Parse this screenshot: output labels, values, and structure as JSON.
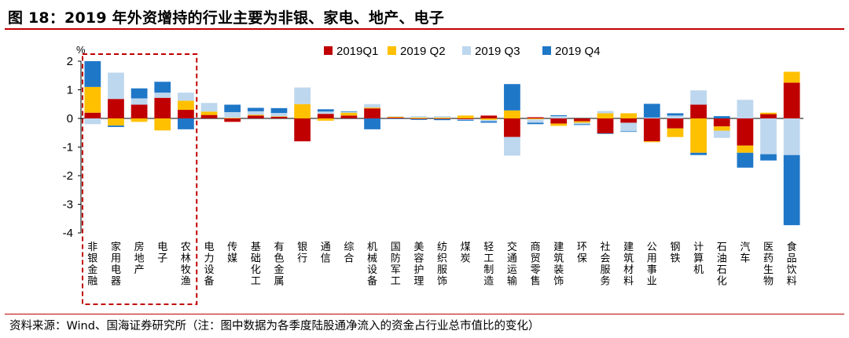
{
  "title": "图 18：2019 年外资增持的行业主要为非银、家电、地产、电子",
  "source": "资料来源：Wind、国海证券研究所（注：图中数据为各季度陆股通净流入的资金占行业总市值比的变化）",
  "colors": {
    "q1": "#c00000",
    "q2": "#ffc000",
    "q3": "#bdd7ee",
    "q4": "#1f77c8",
    "accent": "#c00000",
    "highlight_box": "#c00000"
  },
  "chart_data": {
    "type": "bar",
    "stacked": true,
    "title": "图 18：2019 年外资增持的行业主要为非银、家电、地产、电子",
    "ylabel": "%",
    "xlabel": "",
    "ylim": [
      -4,
      2
    ],
    "yticks": [
      2,
      1,
      0,
      -1,
      -2,
      -3,
      -4
    ],
    "legend_position": "top-center",
    "highlight_box": [
      "非银金融",
      "家用电器",
      "房地产",
      "电子",
      "农林牧渔"
    ],
    "categories": [
      "非银金融",
      "家用电器",
      "房地产",
      "电子",
      "农林牧渔",
      "电力设备",
      "传媒",
      "基础化工",
      "有色金属",
      "银行",
      "通信",
      "综合",
      "机械设备",
      "国防军工",
      "美容护理",
      "纺织服饰",
      "煤炭",
      "轻工制造",
      "交通运输",
      "商贸零售",
      "建筑装饰",
      "环保",
      "社会服务",
      "建筑材料",
      "公用事业",
      "钢铁",
      "计算机",
      "石油石化",
      "汽车",
      "医药生物",
      "食品饮料"
    ],
    "series": [
      {
        "name": "2019Q1",
        "key": "q1",
        "values": [
          0.2,
          0.68,
          0.48,
          0.72,
          0.3,
          0.12,
          -0.12,
          0.1,
          0.06,
          -0.8,
          0.16,
          0.1,
          0.35,
          0.03,
          -0.02,
          -0.02,
          -0.03,
          0.1,
          -0.65,
          0.04,
          -0.18,
          -0.1,
          -0.52,
          -0.15,
          -0.8,
          -0.35,
          0.48,
          -0.28,
          -0.95,
          0.15,
          1.25
        ]
      },
      {
        "name": "2019 Q2",
        "key": "q2",
        "values": [
          0.9,
          -0.25,
          -0.12,
          -0.42,
          0.32,
          0.12,
          0.02,
          0.03,
          0.01,
          0.5,
          -0.08,
          0.1,
          0.03,
          0.03,
          0.03,
          0.03,
          0.1,
          -0.05,
          0.28,
          -0.03,
          -0.08,
          -0.05,
          0.18,
          0.18,
          -0.03,
          -0.3,
          -1.2,
          -0.15,
          -0.25,
          0.05,
          0.38
        ]
      },
      {
        "name": "2019 Q3",
        "key": "q3",
        "values": [
          -0.2,
          0.92,
          0.22,
          0.18,
          0.28,
          0.3,
          0.2,
          0.12,
          0.12,
          0.58,
          0.08,
          0.03,
          0.12,
          0.02,
          0.05,
          0.05,
          -0.02,
          -0.05,
          -0.65,
          -0.12,
          0.08,
          -0.05,
          0.08,
          -0.3,
          0.03,
          0.1,
          0.5,
          -0.25,
          0.65,
          -1.25,
          -1.28
        ]
      },
      {
        "name": "2019 Q4",
        "key": "q4",
        "values": [
          0.9,
          -0.05,
          0.35,
          0.38,
          -0.38,
          0.0,
          0.26,
          0.12,
          0.17,
          0.0,
          0.08,
          0.02,
          -0.38,
          -0.02,
          -0.03,
          -0.04,
          -0.03,
          -0.05,
          0.92,
          -0.05,
          0.03,
          -0.03,
          -0.02,
          -0.02,
          0.48,
          0.08,
          -0.08,
          0.08,
          -0.52,
          -0.22,
          -2.45
        ]
      }
    ]
  }
}
